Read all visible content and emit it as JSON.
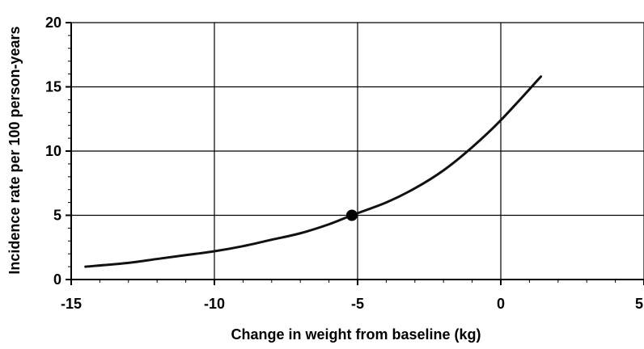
{
  "chart_data": {
    "type": "line",
    "title": "",
    "xlabel": "Change in weight from baseline (kg)",
    "ylabel": "Incidence rate per 100 person-years",
    "xlim": [
      -15,
      5
    ],
    "ylim": [
      0,
      20
    ],
    "x_ticks": [
      -15,
      -10,
      -5,
      0,
      5
    ],
    "y_ticks": [
      0,
      5,
      10,
      15,
      20
    ],
    "x_tick_labels": [
      "-15",
      "-10",
      "-5",
      "0",
      "5"
    ],
    "y_tick_labels": [
      "0",
      "5",
      "10",
      "15",
      "20"
    ],
    "grid": "major gridlines on",
    "series": [
      {
        "line_color": "#111111",
        "x": [
          -14.5,
          -13,
          -12,
          -11,
          -10,
          -9,
          -8,
          -7,
          -6,
          -5.2,
          -4,
          -3,
          -2,
          -1,
          0,
          1.4
        ],
        "y": [
          1.0,
          1.3,
          1.6,
          1.9,
          2.2,
          2.6,
          3.1,
          3.6,
          4.3,
          5.0,
          6.0,
          7.1,
          8.5,
          10.3,
          12.4,
          15.8
        ]
      }
    ],
    "highlight_point": {
      "x": -5.2,
      "y": 5.0,
      "color": "#000000"
    }
  }
}
